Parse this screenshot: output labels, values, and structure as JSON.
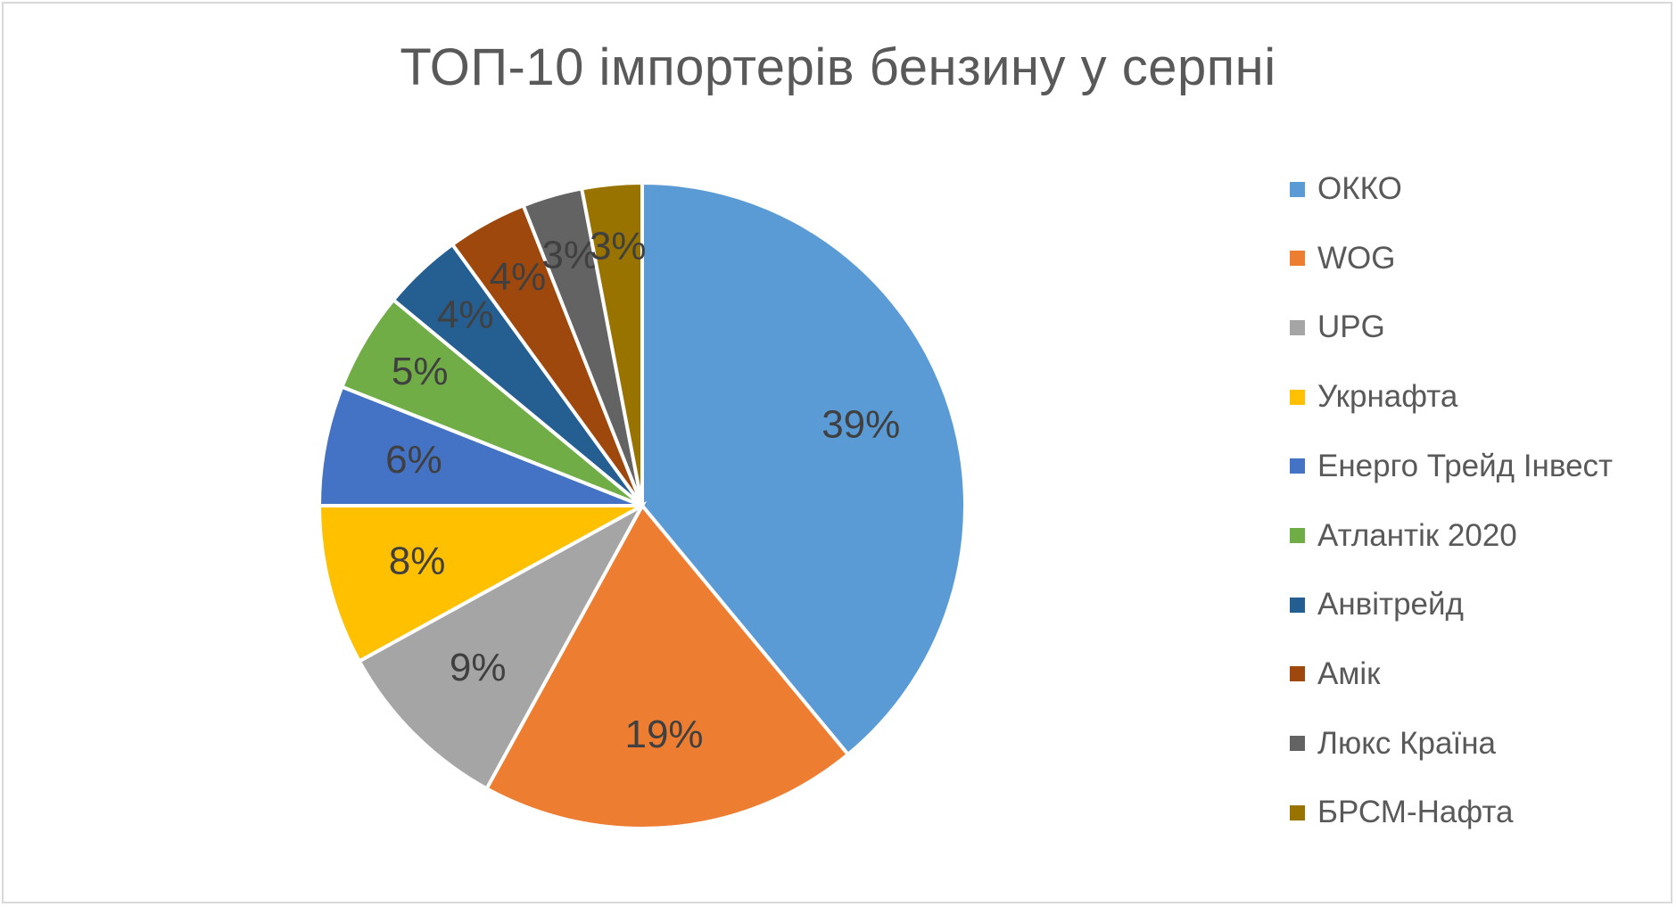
{
  "chart_data": {
    "type": "pie",
    "title": "ТОП-10 імпортерів бензину у серпні",
    "legend_position": "right",
    "slices": [
      {
        "name": "ОККО",
        "value": 39,
        "label": "39%",
        "color": "#5b9bd5"
      },
      {
        "name": "WOG",
        "value": 19,
        "label": "19%",
        "color": "#ed7d31"
      },
      {
        "name": "UPG",
        "value": 9,
        "label": "9%",
        "color": "#a5a5a5"
      },
      {
        "name": "Укрнафта",
        "value": 8,
        "label": "8%",
        "color": "#ffc000"
      },
      {
        "name": "Енерго Трейд Інвест",
        "value": 6,
        "label": "6%",
        "color": "#4472c4"
      },
      {
        "name": "Атлантік 2020",
        "value": 5,
        "label": "5%",
        "color": "#70ad47"
      },
      {
        "name": "Анвітрейд",
        "value": 4,
        "label": "4%",
        "color": "#255e91"
      },
      {
        "name": "Амік",
        "value": 4,
        "label": "4%",
        "color": "#9e480e"
      },
      {
        "name": "Люкс Країна",
        "value": 3,
        "label": "3%",
        "color": "#636363"
      },
      {
        "name": "БРСМ-Нафта",
        "value": 3,
        "label": "3%",
        "color": "#997300"
      }
    ]
  }
}
